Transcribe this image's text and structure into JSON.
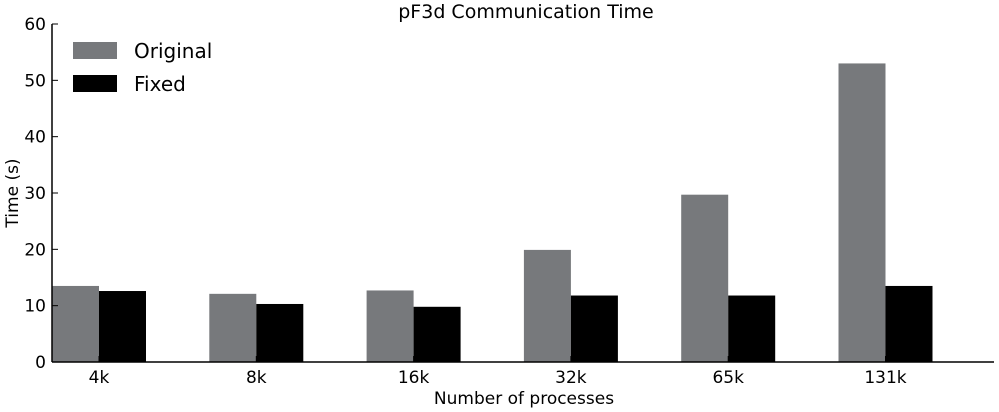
{
  "chart_data": {
    "type": "bar",
    "title": "pF3d Communication Time",
    "xlabel": "Number of processes",
    "ylabel": "Time (s)",
    "categories": [
      "4k",
      "8k",
      "16k",
      "32k",
      "65k",
      "131k"
    ],
    "series": [
      {
        "name": "Original",
        "color": "#77797c",
        "values": [
          13.5,
          12.1,
          12.7,
          19.9,
          29.7,
          53.0
        ]
      },
      {
        "name": "Fixed",
        "color": "#000000",
        "values": [
          12.6,
          10.3,
          9.8,
          11.8,
          11.8,
          13.5
        ]
      }
    ],
    "ylim": [
      0,
      60
    ],
    "yticks": [
      0,
      10,
      20,
      30,
      40,
      50,
      60
    ],
    "grid": false,
    "legend_position": "top-left"
  }
}
